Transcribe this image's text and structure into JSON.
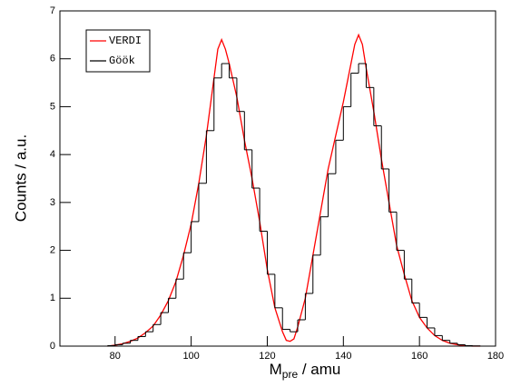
{
  "chart_data": [
    {
      "type": "line",
      "name": "VERDI",
      "color": "#ff0000",
      "xlabel": "M",
      "xlabel_sub": "pre",
      "xlabel_rest": " / amu",
      "ylabel": "Counts / a.u.",
      "xlim": [
        65.5,
        180
      ],
      "ylim": [
        0,
        7
      ],
      "xticks": [
        80,
        100,
        120,
        140,
        160,
        180
      ],
      "yticks": [
        0,
        1,
        2,
        3,
        4,
        5,
        6,
        7
      ],
      "legend": "upper left",
      "x": [
        78,
        80,
        82,
        84,
        86,
        88,
        90,
        92,
        94,
        96,
        98,
        100,
        102,
        104,
        106,
        107,
        108,
        109,
        110,
        112,
        114,
        116,
        118,
        120,
        122,
        124,
        125,
        126,
        127,
        128,
        130,
        132,
        134,
        136,
        138,
        140,
        142,
        143,
        144,
        145,
        146,
        148,
        150,
        152,
        154,
        156,
        158,
        160,
        162,
        164,
        166,
        168,
        170,
        172,
        174,
        176
      ],
      "values": [
        0,
        0.02,
        0.05,
        0.1,
        0.17,
        0.28,
        0.42,
        0.65,
        0.95,
        1.35,
        1.9,
        2.55,
        3.4,
        4.4,
        5.6,
        6.2,
        6.4,
        6.2,
        5.9,
        5.2,
        4.3,
        3.5,
        2.6,
        1.6,
        0.8,
        0.3,
        0.12,
        0.1,
        0.15,
        0.4,
        1.0,
        1.9,
        2.8,
        3.7,
        4.4,
        5.1,
        5.9,
        6.3,
        6.5,
        6.3,
        5.8,
        4.9,
        3.9,
        3.0,
        2.1,
        1.5,
        0.95,
        0.6,
        0.38,
        0.22,
        0.12,
        0.06,
        0.03,
        0.01,
        0,
        0
      ]
    },
    {
      "type": "histogram",
      "name": "Göök",
      "color": "#000000",
      "bins": [
        78,
        80,
        82,
        84,
        86,
        88,
        90,
        92,
        94,
        96,
        98,
        100,
        102,
        104,
        106,
        108,
        110,
        112,
        114,
        116,
        118,
        120,
        122,
        124,
        126,
        128,
        130,
        132,
        134,
        136,
        138,
        140,
        142,
        144,
        146,
        148,
        150,
        152,
        154,
        156,
        158,
        160,
        162,
        164,
        166,
        168,
        170,
        172,
        174,
        176,
        178
      ],
      "counts": [
        0.01,
        0.03,
        0.06,
        0.12,
        0.2,
        0.3,
        0.45,
        0.7,
        1.0,
        1.4,
        1.95,
        2.6,
        3.4,
        4.5,
        5.6,
        5.9,
        5.6,
        4.9,
        4.1,
        3.3,
        2.4,
        1.5,
        0.8,
        0.35,
        0.3,
        0.55,
        1.1,
        1.9,
        2.7,
        3.6,
        4.3,
        5.0,
        5.7,
        5.9,
        5.4,
        4.6,
        3.7,
        2.8,
        2.0,
        1.4,
        0.9,
        0.6,
        0.38,
        0.22,
        0.12,
        0.06,
        0.03,
        0.01,
        0.005,
        0
      ]
    }
  ]
}
